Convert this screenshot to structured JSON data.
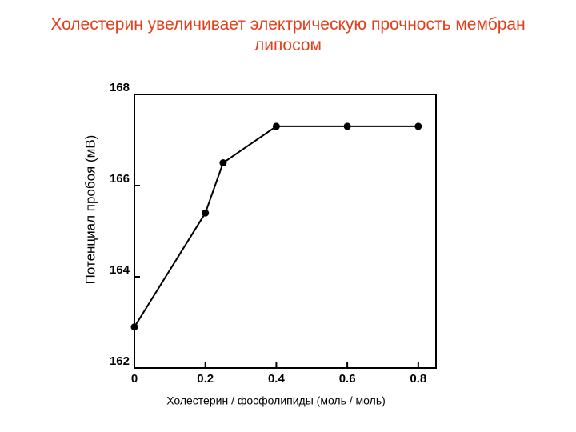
{
  "chart_data": {
    "type": "line",
    "title": "Холестерин увеличивает электрическую прочность мембран липосом",
    "title_color": "#e2401a",
    "x_label": "Холестерин / фосфолипиды (моль / моль)",
    "y_label": "Потенциал пробоя (мВ)",
    "x": [
      0,
      0.2,
      0.25,
      0.4,
      0.6,
      0.8
    ],
    "series": [
      {
        "name": "Потенциал пробоя",
        "color": "#000000",
        "values": [
          162.9,
          165.4,
          166.5,
          167.3,
          167.3,
          167.3
        ]
      }
    ],
    "xlim": [
      0,
      0.85
    ],
    "xticks": [
      0,
      0.2,
      0.4,
      0.6,
      0.8
    ],
    "ylim": [
      162,
      168
    ],
    "yticks": [
      162,
      164,
      166,
      168
    ],
    "grid": false
  }
}
